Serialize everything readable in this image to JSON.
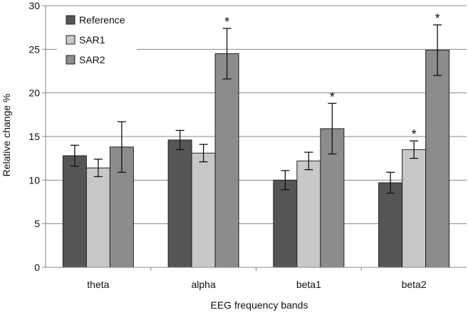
{
  "chart_data": {
    "type": "bar",
    "title": "",
    "xlabel": "EEG frequency bands",
    "ylabel": "Relative change %",
    "ylim": [
      0,
      30
    ],
    "yticks": [
      "0",
      "5",
      "10",
      "15",
      "20",
      "25",
      "30"
    ],
    "grid": true,
    "legend_position": "top-left",
    "categories": [
      "theta",
      "alpha",
      "beta1",
      "beta2"
    ],
    "series": [
      {
        "name": "Reference",
        "color": "#555555",
        "values": [
          12.8,
          14.6,
          10.0,
          9.7
        ],
        "errors": [
          1.2,
          1.1,
          1.1,
          1.2
        ],
        "significant": [
          false,
          false,
          false,
          false
        ]
      },
      {
        "name": "SAR1",
        "color": "#c8c8c8",
        "values": [
          11.4,
          13.1,
          12.2,
          13.5
        ],
        "errors": [
          1.0,
          1.0,
          1.0,
          1.0
        ],
        "significant": [
          false,
          false,
          false,
          true
        ]
      },
      {
        "name": "SAR2",
        "color": "#8c8c8c",
        "values": [
          13.8,
          24.5,
          15.9,
          24.9
        ],
        "errors": [
          2.9,
          2.9,
          2.9,
          2.9
        ],
        "significant": [
          false,
          true,
          true,
          true
        ]
      }
    ],
    "significance_marker": "*"
  }
}
